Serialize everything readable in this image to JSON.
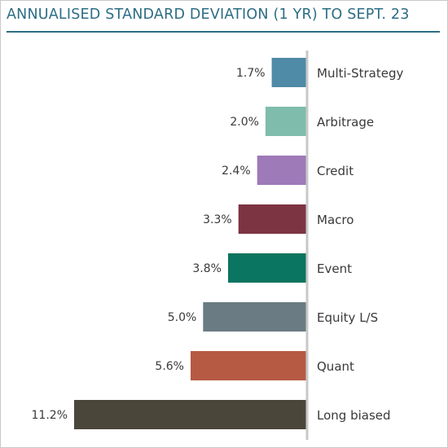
{
  "title": "ANNUALISED STANDARD DEVIATION (1 YR) TO SEPT. 23",
  "chart_data": {
    "type": "bar",
    "orientation": "horizontal",
    "title": "ANNUALISED STANDARD DEVIATION (1 YR) TO SEPT. 23",
    "xlabel": "",
    "ylabel": "",
    "xlim": [
      0,
      11.2
    ],
    "grid": false,
    "legend": "none",
    "categories": [
      "Multi-Strategy",
      "Arbitrage",
      "Credit",
      "Macro",
      "Event",
      "Equity L/S",
      "Quant",
      "Long biased"
    ],
    "values": [
      1.7,
      2.0,
      2.4,
      3.3,
      3.8,
      5.0,
      5.6,
      11.2
    ],
    "value_labels": [
      "1.7%",
      "2.0%",
      "2.4%",
      "3.3%",
      "3.8%",
      "5.0%",
      "5.6%",
      "11.2%"
    ],
    "colors": [
      "#4f8aa6",
      "#7fbcac",
      "#9e7ab8",
      "#7d3442",
      "#0a7560",
      "#6b7b84",
      "#b65a44",
      "#4b463a"
    ],
    "axis_color": "#c8c8c8"
  }
}
